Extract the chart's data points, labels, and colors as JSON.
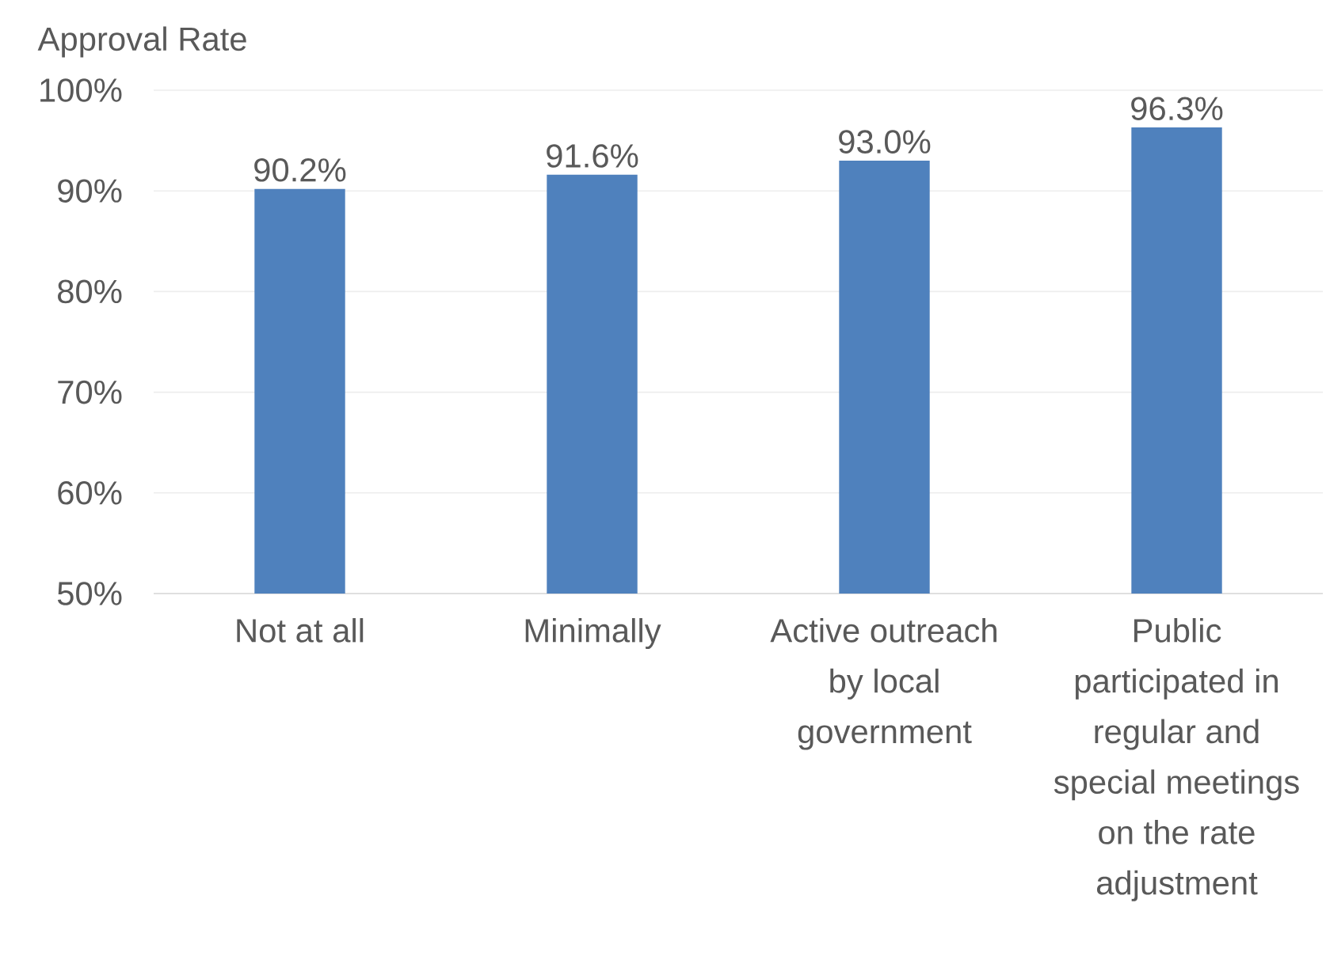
{
  "chart_data": {
    "type": "bar",
    "ylabel": "Approval Rate",
    "categories": [
      "Not at all",
      "Minimally",
      "Active outreach by local government",
      "Public participated in regular and special meetings on the rate adjustment"
    ],
    "values": [
      90.2,
      91.6,
      93.0,
      96.3
    ],
    "value_labels": [
      "90.2%",
      "91.6%",
      "93.0%",
      "96.3%"
    ],
    "color": "#4f81bd",
    "ylim": [
      50,
      100
    ],
    "yticks": [
      {
        "value": 50,
        "label": "50%"
      },
      {
        "value": 60,
        "label": "60%"
      },
      {
        "value": 70,
        "label": "70%"
      },
      {
        "value": 80,
        "label": "80%"
      },
      {
        "value": 90,
        "label": "90%"
      },
      {
        "value": 100,
        "label": "100%"
      }
    ],
    "grid": "y"
  }
}
